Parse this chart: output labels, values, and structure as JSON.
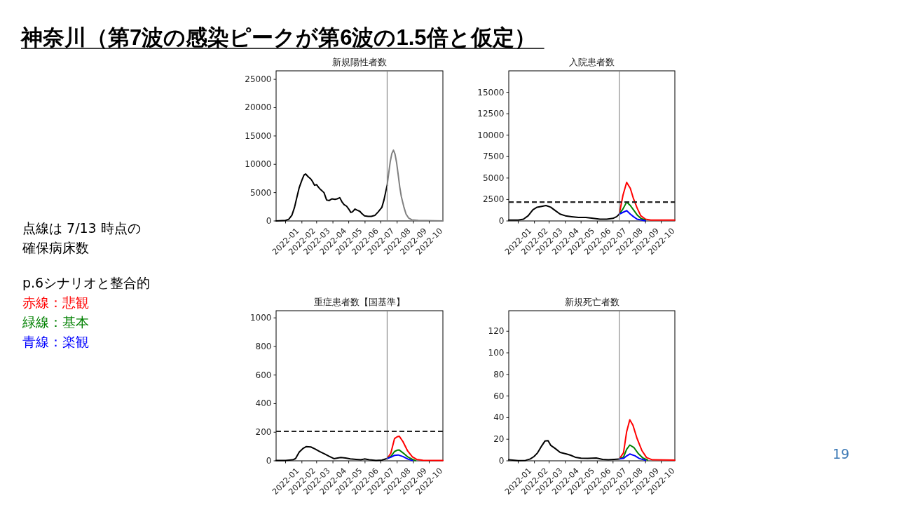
{
  "chart_data": [
    {
      "type": "other",
      "title": "神奈川（第7波の感染ピークが第6波の1.5倍と仮定）",
      "annotations": [
        "点線は 7/13 時点の",
        "確保病床数",
        "p.6シナリオと整合的",
        "赤線：悲観",
        "緑線：基本",
        "青線：楽観",
        "19"
      ],
      "colors": [
        "#000000",
        "#000000",
        "#000000",
        "#ff0000",
        "#008000",
        "#0000ff",
        "#3b78b5"
      ]
    },
    {
      "type": "line",
      "title": "新規陽性者数",
      "xlim": [
        "2021-12-14",
        "2022-10-27"
      ],
      "ylim": [
        0,
        26500
      ],
      "xticks": [
        "2022-01",
        "2022-02",
        "2022-03",
        "2022-04",
        "2022-05",
        "2022-06",
        "2022-07",
        "2022-08",
        "2022-09",
        "2022-10"
      ],
      "yticks": [
        0,
        5000,
        10000,
        15000,
        20000,
        25000
      ],
      "series": [
        {
          "color": "#000000",
          "x": [
            "2021-12-14",
            "2022-01-01",
            "2022-01-07",
            "2022-01-13",
            "2022-01-18",
            "2022-01-22",
            "2022-01-27",
            "2022-02-01",
            "2022-02-05",
            "2022-02-08",
            "2022-02-13",
            "2022-02-18",
            "2022-02-21",
            "2022-02-25",
            "2022-03-01",
            "2022-03-05",
            "2022-03-09",
            "2022-03-15",
            "2022-03-20",
            "2022-03-25",
            "2022-03-30",
            "2022-04-05",
            "2022-04-09",
            "2022-04-14",
            "2022-04-18",
            "2022-04-22",
            "2022-04-27",
            "2022-05-01",
            "2022-05-05",
            "2022-05-08",
            "2022-05-13",
            "2022-05-17",
            "2022-05-22",
            "2022-05-26",
            "2022-05-31",
            "2022-06-07",
            "2022-06-13",
            "2022-06-20",
            "2022-06-26",
            "2022-07-03",
            "2022-07-07",
            "2022-07-13"
          ],
          "values": [
            0,
            100,
            300,
            1000,
            2400,
            4000,
            5900,
            7200,
            8100,
            8300,
            7800,
            7400,
            7000,
            6300,
            6400,
            5900,
            5500,
            5000,
            3700,
            3600,
            3900,
            3800,
            3900,
            4100,
            3400,
            2900,
            2600,
            2100,
            1500,
            1600,
            2100,
            1900,
            1700,
            1300,
            900,
            800,
            800,
            1000,
            1600,
            2400,
            3700,
            6300
          ]
        },
        {
          "color": "#808080",
          "x": [
            "2022-07-13",
            "2022-07-16",
            "2022-07-19",
            "2022-07-22",
            "2022-07-25",
            "2022-07-28",
            "2022-07-31",
            "2022-08-03",
            "2022-08-06",
            "2022-08-09",
            "2022-08-14",
            "2022-08-18",
            "2022-08-23",
            "2022-08-29",
            "2022-09-10",
            "2022-10-27"
          ],
          "values": [
            6300,
            8400,
            10500,
            11900,
            12500,
            11800,
            10300,
            8200,
            6000,
            4300,
            2400,
            1200,
            500,
            200,
            100,
            0
          ]
        }
      ],
      "ref_lines": [
        {
          "axis": "x",
          "value": "2022-07-13",
          "color": "#808080",
          "line_style": "solid"
        }
      ]
    },
    {
      "type": "line",
      "title": "入院患者数",
      "xlim": [
        "2021-12-14",
        "2022-10-27"
      ],
      "ylim": [
        0,
        17500
      ],
      "xticks": [
        "2022-01",
        "2022-02",
        "2022-03",
        "2022-04",
        "2022-05",
        "2022-06",
        "2022-07",
        "2022-08",
        "2022-09",
        "2022-10"
      ],
      "yticks": [
        0,
        2500,
        5000,
        7500,
        10000,
        12500,
        15000
      ],
      "series": [
        {
          "color": "#000000",
          "x": [
            "2021-12-14",
            "2022-01-01",
            "2022-01-11",
            "2022-01-20",
            "2022-01-29",
            "2022-02-06",
            "2022-02-15",
            "2022-02-23",
            "2022-03-04",
            "2022-03-13",
            "2022-03-22",
            "2022-04-01",
            "2022-04-13",
            "2022-04-26",
            "2022-05-10",
            "2022-05-24",
            "2022-06-06",
            "2022-06-19",
            "2022-07-01",
            "2022-07-08",
            "2022-07-13"
          ],
          "values": [
            100,
            100,
            200,
            600,
            1300,
            1600,
            1700,
            1800,
            1600,
            1200,
            800,
            600,
            500,
            400,
            400,
            300,
            200,
            200,
            300,
            500,
            800
          ]
        },
        {
          "color": "#ff0000",
          "x": [
            "2022-07-13",
            "2022-07-20",
            "2022-07-27",
            "2022-08-03",
            "2022-08-09",
            "2022-08-16",
            "2022-08-23",
            "2022-09-01",
            "2022-09-11",
            "2022-10-27"
          ],
          "values": [
            800,
            3000,
            4500,
            3800,
            2600,
            1500,
            600,
            200,
            100,
            100
          ]
        },
        {
          "color": "#008000",
          "x": [
            "2022-07-13",
            "2022-07-20",
            "2022-07-27",
            "2022-08-03",
            "2022-08-09",
            "2022-08-16",
            "2022-08-23",
            "2022-09-01"
          ],
          "values": [
            800,
            1400,
            2200,
            1800,
            1300,
            700,
            300,
            100
          ]
        },
        {
          "color": "#0000ff",
          "x": [
            "2022-07-13",
            "2022-07-20",
            "2022-07-27",
            "2022-08-03",
            "2022-08-09",
            "2022-08-16",
            "2022-08-25",
            "2022-09-01"
          ],
          "values": [
            800,
            1000,
            1200,
            800,
            500,
            200,
            100,
            0
          ]
        }
      ],
      "ref_lines": [
        {
          "axis": "x",
          "value": "2022-07-13",
          "color": "#808080",
          "line_style": "solid"
        },
        {
          "axis": "y",
          "value": 2200,
          "color": "#222222",
          "line_style": "dashed"
        }
      ]
    },
    {
      "type": "line",
      "title": "重症患者数【国基準】",
      "xlim": [
        "2021-12-14",
        "2022-10-27"
      ],
      "ylim": [
        0,
        1050
      ],
      "xticks": [
        "2022-01",
        "2022-02",
        "2022-03",
        "2022-04",
        "2022-05",
        "2022-06",
        "2022-07",
        "2022-08",
        "2022-09",
        "2022-10"
      ],
      "yticks": [
        0,
        200,
        400,
        600,
        800,
        1000
      ],
      "series": [
        {
          "color": "#000000",
          "x": [
            "2021-12-14",
            "2022-01-01",
            "2022-01-15",
            "2022-01-20",
            "2022-01-27",
            "2022-02-03",
            "2022-02-09",
            "2022-02-18",
            "2022-02-26",
            "2022-03-07",
            "2022-03-16",
            "2022-03-25",
            "2022-04-03",
            "2022-04-10",
            "2022-04-16",
            "2022-04-25",
            "2022-05-04",
            "2022-05-15",
            "2022-05-24",
            "2022-05-31",
            "2022-06-09",
            "2022-06-22",
            "2022-07-03",
            "2022-07-13"
          ],
          "values": [
            2,
            3,
            7,
            16,
            61,
            86,
            99,
            97,
            83,
            64,
            48,
            31,
            15,
            20,
            23,
            20,
            13,
            10,
            7,
            13,
            7,
            3,
            5,
            16
          ]
        },
        {
          "color": "#ff0000",
          "x": [
            "2022-07-13",
            "2022-07-20",
            "2022-07-27",
            "2022-08-01",
            "2022-08-05",
            "2022-08-12",
            "2022-08-21",
            "2022-08-30",
            "2022-09-07",
            "2022-09-19",
            "2022-10-27"
          ],
          "values": [
            16,
            53,
            155,
            168,
            172,
            135,
            69,
            28,
            10,
            4,
            3
          ]
        },
        {
          "color": "#008000",
          "x": [
            "2022-07-13",
            "2022-07-20",
            "2022-07-27",
            "2022-08-02",
            "2022-08-05",
            "2022-08-12",
            "2022-08-21",
            "2022-08-30",
            "2022-09-05"
          ],
          "values": [
            16,
            30,
            65,
            75,
            76,
            56,
            28,
            10,
            2
          ]
        },
        {
          "color": "#0000ff",
          "x": [
            "2022-07-13",
            "2022-07-20",
            "2022-07-27",
            "2022-08-03",
            "2022-08-12",
            "2022-08-21",
            "2022-08-30"
          ],
          "values": [
            16,
            25,
            38,
            41,
            30,
            13,
            2
          ]
        }
      ],
      "ref_lines": [
        {
          "axis": "x",
          "value": "2022-07-13",
          "color": "#808080",
          "line_style": "solid"
        },
        {
          "axis": "y",
          "value": 206,
          "color": "#222222",
          "line_style": "dashed"
        }
      ]
    },
    {
      "type": "line",
      "title": "新規死亡者数",
      "xlim": [
        "2021-12-14",
        "2022-10-27"
      ],
      "ylim": [
        0,
        139
      ],
      "xticks": [
        "2022-01",
        "2022-02",
        "2022-03",
        "2022-04",
        "2022-05",
        "2022-06",
        "2022-07",
        "2022-08",
        "2022-09",
        "2022-10"
      ],
      "yticks": [
        0,
        20,
        40,
        60,
        80,
        100,
        120
      ],
      "series": [
        {
          "color": "#000000",
          "x": [
            "2021-12-14",
            "2022-01-01",
            "2022-01-15",
            "2022-01-24",
            "2022-01-31",
            "2022-02-07",
            "2022-02-15",
            "2022-02-21",
            "2022-02-27",
            "2022-03-04",
            "2022-03-13",
            "2022-03-22",
            "2022-04-03",
            "2022-04-11",
            "2022-04-20",
            "2022-05-01",
            "2022-05-14",
            "2022-05-30",
            "2022-06-11",
            "2022-06-22",
            "2022-07-03",
            "2022-07-13"
          ],
          "values": [
            0.9,
            0.2,
            0.4,
            1.7,
            3.9,
            7.4,
            13.9,
            18.3,
            18.7,
            14.4,
            11.3,
            7.8,
            6.3,
            5.2,
            3.3,
            2.4,
            2.2,
            2.6,
            1.3,
            0.9,
            1.3,
            1.7
          ]
        },
        {
          "color": "#ff0000",
          "x": [
            "2022-07-13",
            "2022-07-21",
            "2022-07-27",
            "2022-08-02",
            "2022-08-08",
            "2022-08-16",
            "2022-08-25",
            "2022-09-03",
            "2022-09-14",
            "2022-10-27"
          ],
          "values": [
            1.7,
            7.4,
            27,
            38,
            33,
            20.5,
            9.6,
            3,
            0.9,
            0.7
          ]
        },
        {
          "color": "#008000",
          "x": [
            "2022-07-13",
            "2022-07-21",
            "2022-07-27",
            "2022-08-02",
            "2022-08-10",
            "2022-08-18",
            "2022-08-27",
            "2022-09-05"
          ],
          "values": [
            1.7,
            3.5,
            10.7,
            14.6,
            12.2,
            6.8,
            2.6,
            0.7
          ]
        },
        {
          "color": "#0000ff",
          "x": [
            "2022-07-13",
            "2022-07-21",
            "2022-07-27",
            "2022-08-02",
            "2022-08-12",
            "2022-08-20",
            "2022-09-01"
          ],
          "values": [
            1.7,
            2.2,
            4.5,
            6.3,
            4.6,
            2.2,
            0.4
          ]
        }
      ],
      "ref_lines": [
        {
          "axis": "x",
          "value": "2022-07-13",
          "color": "#808080",
          "line_style": "solid"
        }
      ]
    }
  ]
}
